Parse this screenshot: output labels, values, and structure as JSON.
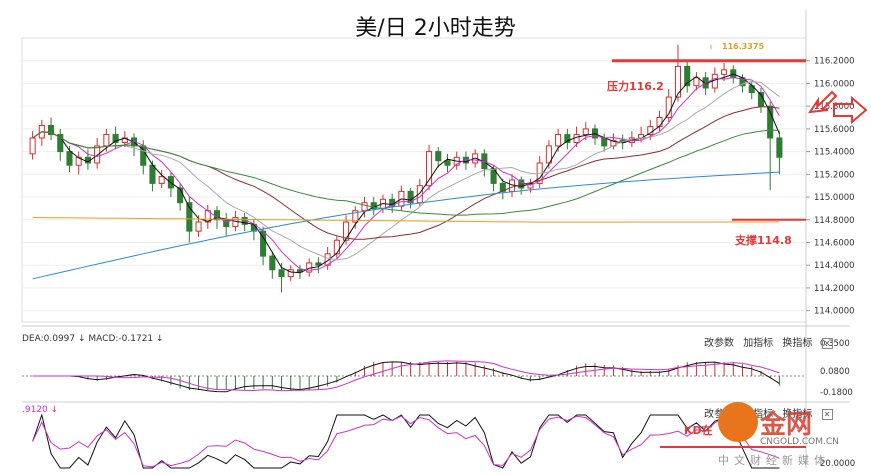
{
  "title": "美/日 2小时走势",
  "colors": {
    "up": "#d32f2f",
    "down": "#2e7d32",
    "ma_black": "#111111",
    "ma_magenta": "#cc33cc",
    "ma_gray": "#aaaaaa",
    "ma_brown": "#8b2f2f",
    "ma_green": "#3a8a3a",
    "ma_blue": "#2b8ccf",
    "ma_orange": "#e0a020",
    "annot": "#e53935",
    "grid": "#eeeeee"
  },
  "chart_data": {
    "type": "candlestick",
    "y_ticks": [
      "116.2000",
      "116.0000",
      "115.8000",
      "115.6000",
      "115.4000",
      "115.2000",
      "115.0000",
      "114.8000",
      "114.6000",
      "114.4000",
      "114.2000",
      "114.0000"
    ],
    "ylim": [
      113.9,
      116.4
    ],
    "candles": [
      [
        115.38,
        115.52,
        115.33,
        115.58
      ],
      [
        115.52,
        115.63,
        115.45,
        115.68
      ],
      [
        115.63,
        115.55,
        115.5,
        115.7
      ],
      [
        115.55,
        115.4,
        115.32,
        115.6
      ],
      [
        115.4,
        115.28,
        115.22,
        115.45
      ],
      [
        115.28,
        115.35,
        115.2,
        115.4
      ],
      [
        115.35,
        115.3,
        115.24,
        115.42
      ],
      [
        115.3,
        115.45,
        115.25,
        115.52
      ],
      [
        115.45,
        115.55,
        115.4,
        115.6
      ],
      [
        115.55,
        115.48,
        115.42,
        115.62
      ],
      [
        115.48,
        115.52,
        115.44,
        115.58
      ],
      [
        115.52,
        115.45,
        115.36,
        115.56
      ],
      [
        115.45,
        115.28,
        115.2,
        115.5
      ],
      [
        115.28,
        115.12,
        115.05,
        115.32
      ],
      [
        115.12,
        115.18,
        115.08,
        115.24
      ],
      [
        115.18,
        115.08,
        115.0,
        115.22
      ],
      [
        115.08,
        114.95,
        114.88,
        115.12
      ],
      [
        114.95,
        114.7,
        114.6,
        115.0
      ],
      [
        114.7,
        114.78,
        114.65,
        114.84
      ],
      [
        114.78,
        114.88,
        114.72,
        114.93
      ],
      [
        114.88,
        114.8,
        114.72,
        114.92
      ],
      [
        114.8,
        114.74,
        114.66,
        114.86
      ],
      [
        114.74,
        114.82,
        114.7,
        114.88
      ],
      [
        114.82,
        114.76,
        114.7,
        114.86
      ],
      [
        114.76,
        114.7,
        114.62,
        114.8
      ],
      [
        114.7,
        114.48,
        114.4,
        114.74
      ],
      [
        114.48,
        114.36,
        114.28,
        114.52
      ],
      [
        114.36,
        114.3,
        114.16,
        114.42
      ],
      [
        114.3,
        114.36,
        114.26,
        114.4
      ],
      [
        114.36,
        114.34,
        114.28,
        114.4
      ],
      [
        114.34,
        114.42,
        114.3,
        114.46
      ],
      [
        114.42,
        114.4,
        114.33,
        114.47
      ],
      [
        114.4,
        114.5,
        114.36,
        114.56
      ],
      [
        114.5,
        114.62,
        114.46,
        114.66
      ],
      [
        114.62,
        114.78,
        114.58,
        114.84
      ],
      [
        114.78,
        114.88,
        114.72,
        114.92
      ],
      [
        114.88,
        114.95,
        114.82,
        115.0
      ],
      [
        114.95,
        114.9,
        114.84,
        115.0
      ],
      [
        114.9,
        114.98,
        114.86,
        115.02
      ],
      [
        114.98,
        114.92,
        114.86,
        115.03
      ],
      [
        114.92,
        115.05,
        114.88,
        115.1
      ],
      [
        115.05,
        114.95,
        114.9,
        115.08
      ],
      [
        114.95,
        115.1,
        114.92,
        115.16
      ],
      [
        115.1,
        115.4,
        115.06,
        115.46
      ],
      [
        115.4,
        115.32,
        115.26,
        115.44
      ],
      [
        115.32,
        115.28,
        115.22,
        115.38
      ],
      [
        115.28,
        115.35,
        115.24,
        115.4
      ],
      [
        115.35,
        115.3,
        115.24,
        115.4
      ],
      [
        115.3,
        115.38,
        115.26,
        115.42
      ],
      [
        115.38,
        115.25,
        115.18,
        115.42
      ],
      [
        115.25,
        115.12,
        115.05,
        115.28
      ],
      [
        115.12,
        115.05,
        114.98,
        115.16
      ],
      [
        115.05,
        115.15,
        115.0,
        115.2
      ],
      [
        115.15,
        115.08,
        115.02,
        115.18
      ],
      [
        115.08,
        115.12,
        115.04,
        115.16
      ],
      [
        115.12,
        115.3,
        115.08,
        115.36
      ],
      [
        115.3,
        115.45,
        115.25,
        115.5
      ],
      [
        115.45,
        115.55,
        115.4,
        115.6
      ],
      [
        115.55,
        115.48,
        115.42,
        115.6
      ],
      [
        115.48,
        115.55,
        115.44,
        115.62
      ],
      [
        115.55,
        115.6,
        115.5,
        115.66
      ],
      [
        115.6,
        115.52,
        115.46,
        115.64
      ],
      [
        115.52,
        115.45,
        115.4,
        115.56
      ],
      [
        115.45,
        115.5,
        115.42,
        115.56
      ],
      [
        115.5,
        115.48,
        115.42,
        115.55
      ],
      [
        115.48,
        115.52,
        115.44,
        115.58
      ],
      [
        115.52,
        115.55,
        115.48,
        115.62
      ],
      [
        115.55,
        115.62,
        115.5,
        115.68
      ],
      [
        115.62,
        115.7,
        115.58,
        115.76
      ],
      [
        115.7,
        115.88,
        115.66,
        115.95
      ],
      [
        115.88,
        116.15,
        115.84,
        116.34
      ],
      [
        116.15,
        115.98,
        115.92,
        116.2
      ],
      [
        115.98,
        116.05,
        115.94,
        116.1
      ],
      [
        116.05,
        115.96,
        115.9,
        116.1
      ],
      [
        115.96,
        116.08,
        115.92,
        116.14
      ],
      [
        116.08,
        116.12,
        116.02,
        116.18
      ],
      [
        116.12,
        116.05,
        116.0,
        116.16
      ],
      [
        116.05,
        115.98,
        115.92,
        116.08
      ],
      [
        115.98,
        115.92,
        115.86,
        116.02
      ],
      [
        115.92,
        115.8,
        115.74,
        115.96
      ],
      [
        115.8,
        115.52,
        115.06,
        115.84
      ],
      [
        115.52,
        115.35,
        115.2,
        115.58
      ]
    ],
    "annotations": {
      "high_label": "116.3375",
      "resistance_label": "压力116.2",
      "resistance_value": 116.2,
      "support_label": "支撑114.8",
      "support_value": 114.8
    },
    "macd": {
      "label": "DEA:0.0997 ↓ MACD:-0.1721 ↓",
      "y_ticks": [
        "0.3500",
        "0.0800",
        "-0.1800"
      ]
    },
    "kd": {
      "label": ".9120 ↓",
      "y_ticks": [
        "20.0000"
      ],
      "annotation": "KD在"
    }
  },
  "toolbar": {
    "params": "改参数",
    "add": "加指标",
    "switch": "换指标",
    "close": "✕"
  },
  "watermark": {
    "brand": "金网",
    "url": "CNGOLD.COM.CN",
    "subtitle": "中文财经新媒体"
  }
}
